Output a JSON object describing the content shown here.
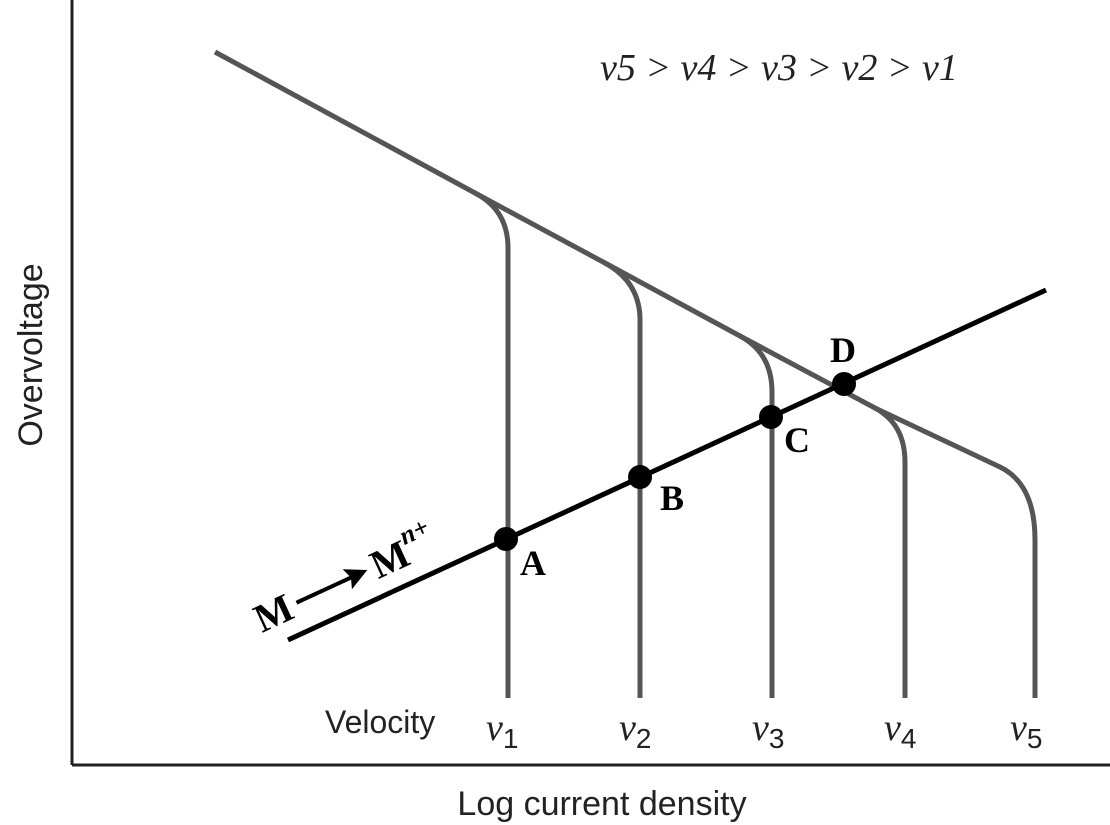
{
  "chart_data": {
    "type": "line",
    "title": "",
    "xlabel": "Log current density",
    "ylabel": "Overvoltage",
    "annotation": {
      "relation": "v5 > v4 > v3 > v2 > v1"
    },
    "velocity_axis_label": "Velocity",
    "velocities": [
      {
        "symbol": "v",
        "subscript": "1"
      },
      {
        "symbol": "v",
        "subscript": "2"
      },
      {
        "symbol": "v",
        "subscript": "3"
      },
      {
        "symbol": "v",
        "subscript": "4"
      },
      {
        "symbol": "v",
        "subscript": "5"
      }
    ],
    "reaction": {
      "reactant": "M",
      "product": "M",
      "superscript": "n+"
    },
    "intersection_points": [
      "A",
      "B",
      "C",
      "D"
    ],
    "colors": {
      "curves": "#555555",
      "oxidation_line": "#000000",
      "axes": "#222222"
    }
  }
}
